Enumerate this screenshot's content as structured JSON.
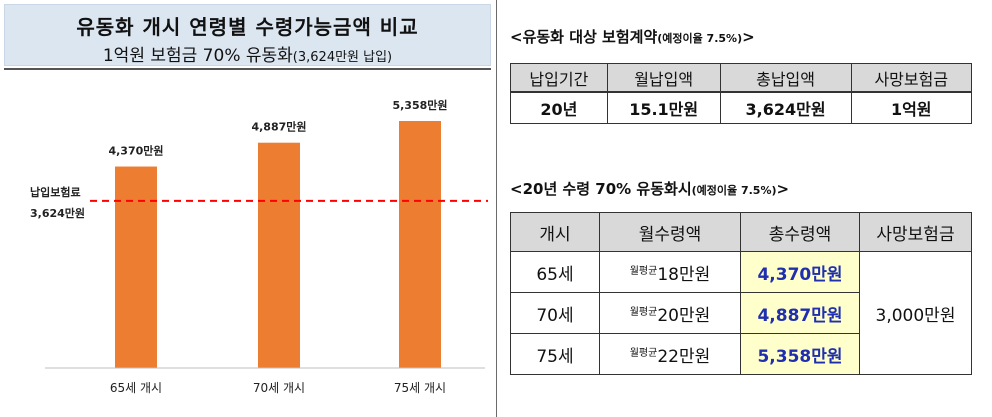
{
  "left_panel": {
    "title_line1": "유동화 개시 연령별 수령가능금액 비교",
    "title_line2": "1억원 보험금 70% 유동화",
    "title_line2_note": "(3,624만원 납입)"
  },
  "chart_data": {
    "type": "bar",
    "categories": [
      "65세 개시",
      "70세 개시",
      "75세 개시"
    ],
    "values": [
      4370,
      4887,
      5358
    ],
    "unit": "만원",
    "data_labels": [
      "4,370만원",
      "4,887만원",
      "5,358만원"
    ],
    "reference_line": {
      "value": 3624,
      "label_line1": "납입보험료",
      "label_line2": "3,624만원",
      "style": "dashed",
      "color": "#ff0000"
    },
    "bar_color": "#ed7d31",
    "ylim": [
      0,
      6000
    ],
    "grid": false,
    "legend": "none",
    "title": "",
    "xlabel": "",
    "ylabel": ""
  },
  "contract": {
    "heading": "<유동화 대상 보험계약",
    "heading_note": "(예정이율 7.5%)",
    "heading_close": ">",
    "headers": [
      "납입기간",
      "월납입액",
      "총납입액",
      "사망보험금"
    ],
    "row": [
      "20년",
      "15.1만원",
      "3,624만원",
      "1억원"
    ]
  },
  "payout": {
    "heading": "<20년 수령 70% 유동화시",
    "heading_note": "(예정이율 7.5%)",
    "heading_close": ">",
    "headers": [
      "개시",
      "월수령액",
      "총수령액",
      "사망보험금"
    ],
    "monthly_prefix": "월평균",
    "rows": [
      {
        "start": "65세",
        "monthly": "18만원",
        "total": "4,370만원"
      },
      {
        "start": "70세",
        "monthly": "20만원",
        "total": "4,887만원"
      },
      {
        "start": "75세",
        "monthly": "22만원",
        "total": "5,358만원"
      }
    ],
    "death_benefit": "3,000만원"
  }
}
